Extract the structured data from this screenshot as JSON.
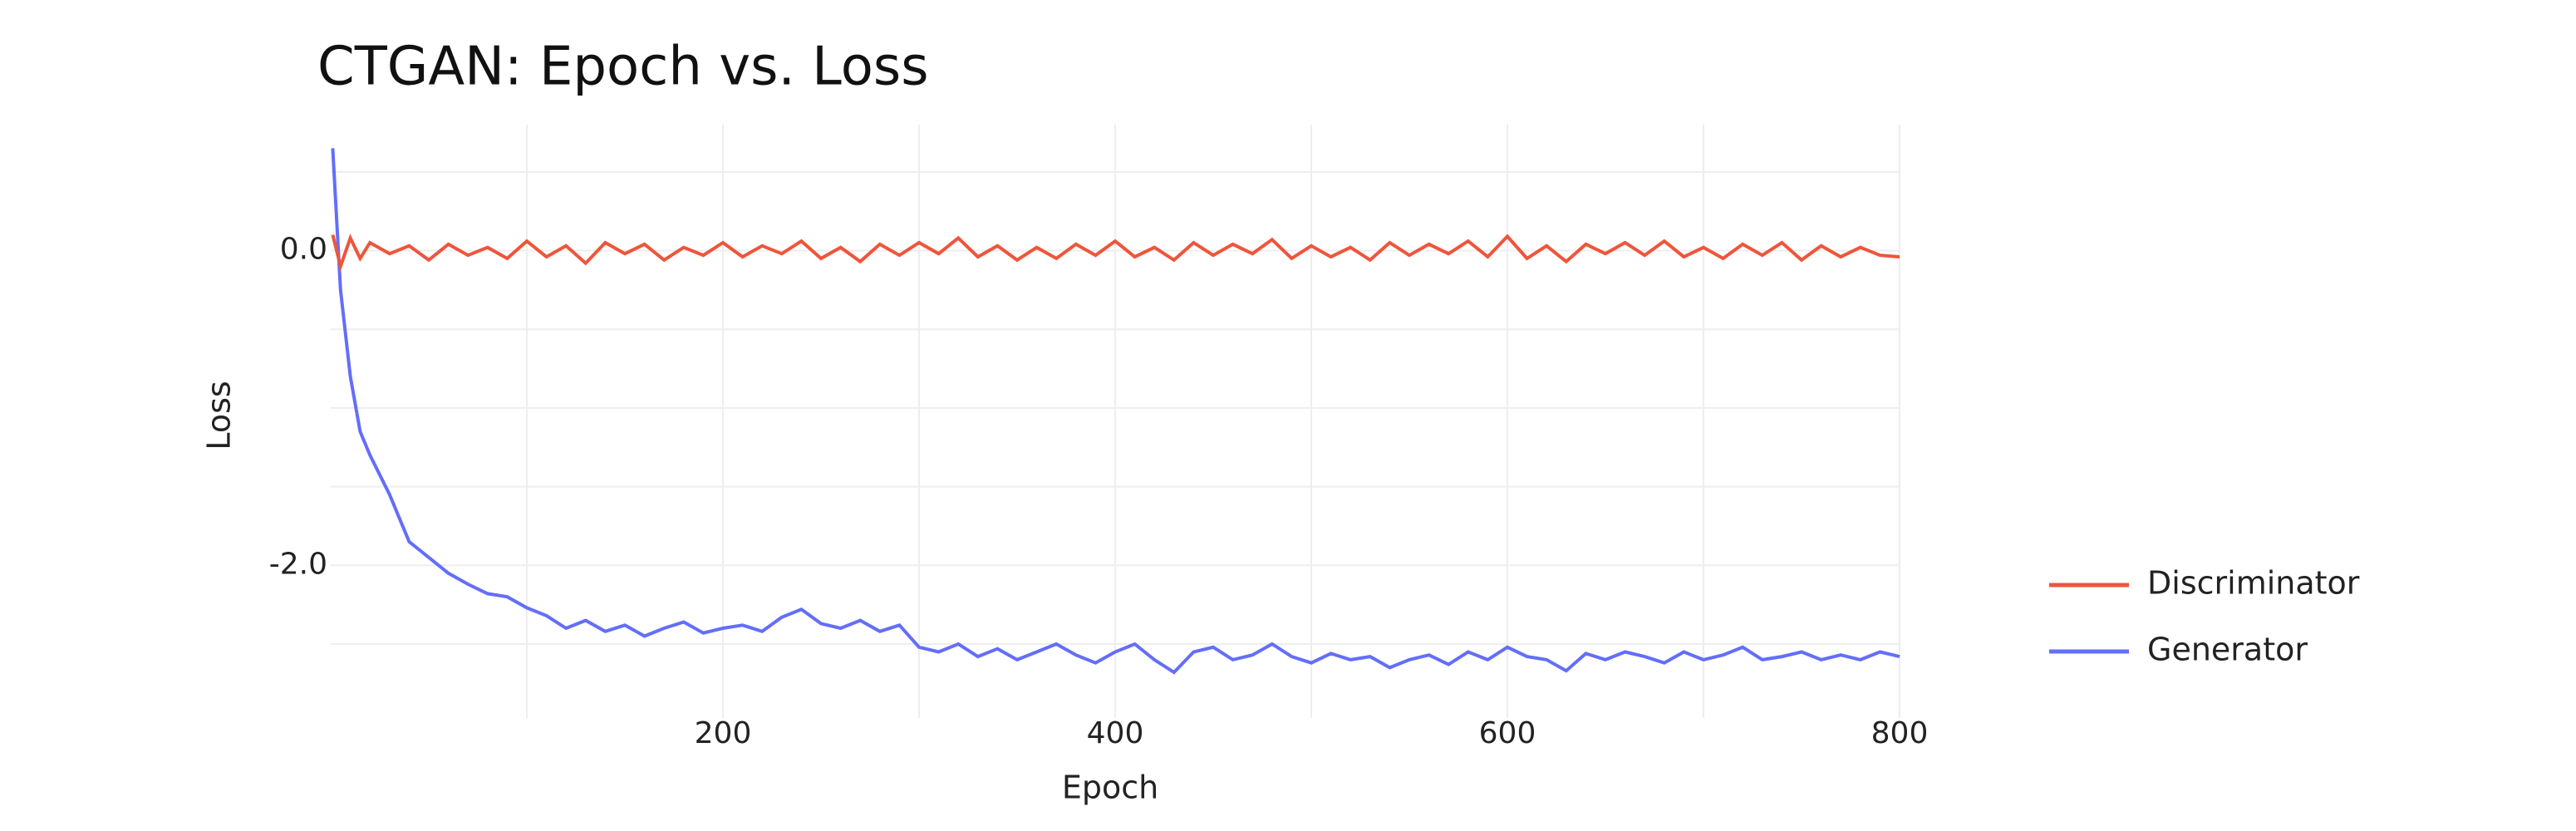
{
  "chart_data": {
    "type": "line",
    "title": "CTGAN: Epoch vs. Loss",
    "x_label": "Epoch",
    "y_label": "Loss",
    "x": [
      1,
      5,
      10,
      15,
      20,
      30,
      40,
      50,
      60,
      70,
      80,
      90,
      100,
      110,
      120,
      130,
      140,
      150,
      160,
      170,
      180,
      190,
      200,
      210,
      220,
      230,
      240,
      250,
      260,
      270,
      280,
      290,
      300,
      310,
      320,
      330,
      340,
      350,
      360,
      370,
      380,
      390,
      400,
      410,
      420,
      430,
      440,
      450,
      460,
      470,
      480,
      490,
      500,
      510,
      520,
      530,
      540,
      550,
      560,
      570,
      580,
      590,
      600,
      610,
      620,
      630,
      640,
      650,
      660,
      670,
      680,
      690,
      700,
      710,
      720,
      730,
      740,
      750,
      760,
      770,
      780,
      790,
      800
    ],
    "series": [
      {
        "name": "Discriminator",
        "color": "#EF553B",
        "values": [
          0.1,
          -0.1,
          0.08,
          -0.05,
          0.05,
          -0.02,
          0.03,
          -0.06,
          0.04,
          -0.03,
          0.02,
          -0.05,
          0.06,
          -0.04,
          0.03,
          -0.08,
          0.05,
          -0.02,
          0.04,
          -0.06,
          0.02,
          -0.03,
          0.05,
          -0.04,
          0.03,
          -0.02,
          0.06,
          -0.05,
          0.02,
          -0.07,
          0.04,
          -0.03,
          0.05,
          -0.02,
          0.08,
          -0.04,
          0.03,
          -0.06,
          0.02,
          -0.05,
          0.04,
          -0.03,
          0.06,
          -0.04,
          0.02,
          -0.06,
          0.05,
          -0.03,
          0.04,
          -0.02,
          0.07,
          -0.05,
          0.03,
          -0.04,
          0.02,
          -0.06,
          0.05,
          -0.03,
          0.04,
          -0.02,
          0.06,
          -0.04,
          0.09,
          -0.05,
          0.03,
          -0.07,
          0.04,
          -0.02,
          0.05,
          -0.03,
          0.06,
          -0.04,
          0.02,
          -0.05,
          0.04,
          -0.03,
          0.05,
          -0.06,
          0.03,
          -0.04,
          0.02,
          -0.03,
          -0.04
        ]
      },
      {
        "name": "Generator",
        "color": "#636EFA",
        "values": [
          0.65,
          -0.25,
          -0.8,
          -1.15,
          -1.3,
          -1.55,
          -1.85,
          -1.95,
          -2.05,
          -2.12,
          -2.18,
          -2.2,
          -2.27,
          -2.32,
          -2.4,
          -2.35,
          -2.42,
          -2.38,
          -2.45,
          -2.4,
          -2.36,
          -2.43,
          -2.4,
          -2.38,
          -2.42,
          -2.33,
          -2.28,
          -2.37,
          -2.4,
          -2.35,
          -2.42,
          -2.38,
          -2.52,
          -2.55,
          -2.5,
          -2.58,
          -2.53,
          -2.6,
          -2.55,
          -2.5,
          -2.57,
          -2.62,
          -2.55,
          -2.5,
          -2.6,
          -2.68,
          -2.55,
          -2.52,
          -2.6,
          -2.57,
          -2.5,
          -2.58,
          -2.62,
          -2.56,
          -2.6,
          -2.58,
          -2.65,
          -2.6,
          -2.57,
          -2.63,
          -2.55,
          -2.6,
          -2.52,
          -2.58,
          -2.6,
          -2.67,
          -2.56,
          -2.6,
          -2.55,
          -2.58,
          -2.62,
          -2.55,
          -2.6,
          -2.57,
          -2.52,
          -2.6,
          -2.58,
          -2.55,
          -2.6,
          -2.57,
          -2.6,
          -2.55,
          -2.58
        ]
      }
    ],
    "xlim": [
      0,
      800
    ],
    "ylim": [
      -2.97,
      0.8
    ],
    "xticks": [
      200,
      400,
      600,
      800
    ],
    "yticks": [
      {
        "value": 0,
        "label": "0.0"
      },
      {
        "value": -2,
        "label": "-2.0"
      }
    ],
    "xgrid": [
      100,
      200,
      300,
      400,
      500,
      600,
      700,
      800
    ],
    "ygrid": [
      0.5,
      0,
      -0.5,
      -1,
      -1.5,
      -2,
      -2.5
    ],
    "legend": "right"
  }
}
